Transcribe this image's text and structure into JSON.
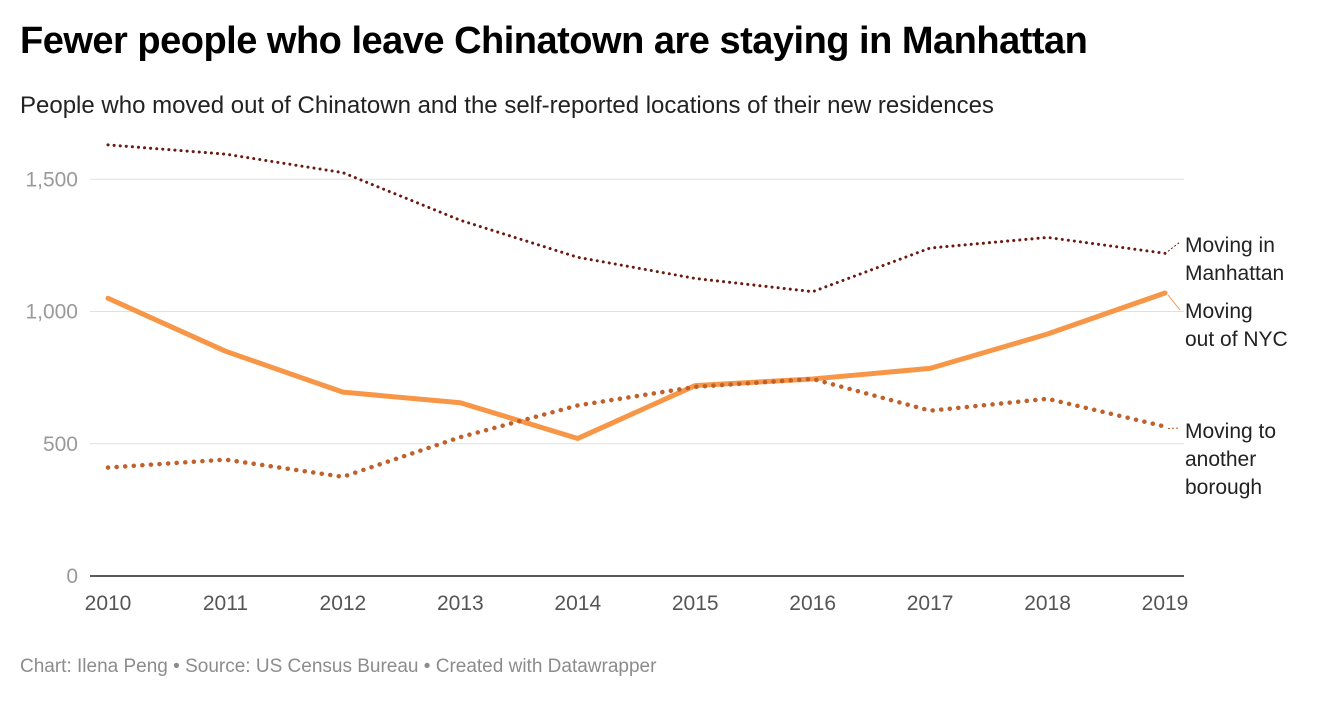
{
  "title": "Fewer people who leave Chinatown are staying in Manhattan",
  "subtitle": "People who moved out of Chinatown and the self-reported locations of their new residences",
  "footer": {
    "chart_credit": "Chart: Ilena Peng",
    "source": "Source: US Census Bureau",
    "created_with": "Created with Datawrapper",
    "separator": "•"
  },
  "chart_data": {
    "type": "line",
    "x": [
      2010,
      2011,
      2012,
      2013,
      2014,
      2015,
      2016,
      2017,
      2018,
      2019
    ],
    "x_tick_labels": [
      "2010",
      "2011",
      "2012",
      "2013",
      "2014",
      "2015",
      "2016",
      "2017",
      "2018",
      "2019"
    ],
    "ylim": [
      0,
      1650
    ],
    "y_ticks": [
      0,
      500,
      1000,
      1500
    ],
    "y_tick_labels": [
      "0",
      "500",
      "1,000",
      "1,500"
    ],
    "grid": true,
    "legend": "direct labels at line ends (right)",
    "series": [
      {
        "name": "Moving in Manhattan",
        "label_lines": [
          "Moving in",
          "Manhattan"
        ],
        "color": "#6b1a10",
        "style": "dotted",
        "values": [
          1630,
          1595,
          1525,
          1345,
          1205,
          1125,
          1075,
          1240,
          1280,
          1220
        ]
      },
      {
        "name": "Moving out of NYC",
        "label_lines": [
          "Moving",
          "out of NYC"
        ],
        "color": "#f79646",
        "style": "solid",
        "values": [
          1050,
          850,
          695,
          655,
          520,
          720,
          745,
          785,
          915,
          1070
        ]
      },
      {
        "name": "Moving to another borough",
        "label_lines": [
          "Moving to",
          "another",
          "borough"
        ],
        "color": "#c0602a",
        "style": "dotted",
        "values": [
          410,
          440,
          375,
          525,
          645,
          715,
          745,
          625,
          670,
          565
        ]
      }
    ]
  }
}
